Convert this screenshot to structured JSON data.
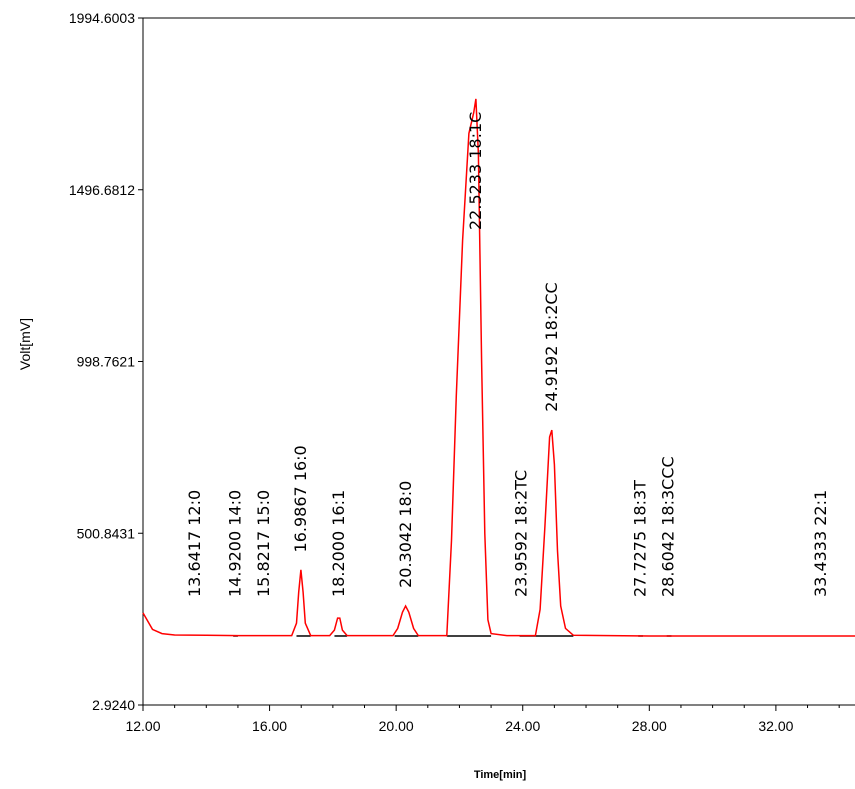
{
  "chart_data": {
    "type": "line",
    "xlabel": "Time[min]",
    "ylabel": "Volt[mV]",
    "xlim": [
      12.0,
      34.5
    ],
    "ylim": [
      2.924,
      1994.6003
    ],
    "x_ticks": [
      "12.00",
      "16.00",
      "20.00",
      "24.00",
      "28.00",
      "32.00"
    ],
    "y_ticks": [
      "1994.6003",
      "1496.6812",
      "998.7621",
      "500.8431",
      "2.9240"
    ],
    "grid": false,
    "line_color": "#ff0000",
    "baseline": 203,
    "series": [
      {
        "values": [
          [
            12.0,
            270
          ],
          [
            12.3,
            222
          ],
          [
            12.6,
            210
          ],
          [
            13.0,
            206
          ],
          [
            14.0,
            205
          ],
          [
            15.0,
            204
          ],
          [
            16.0,
            204
          ],
          [
            16.7,
            204
          ],
          [
            16.85,
            240
          ],
          [
            16.92,
            330
          ],
          [
            16.99,
            395
          ],
          [
            17.06,
            330
          ],
          [
            17.13,
            240
          ],
          [
            17.3,
            204
          ],
          [
            17.9,
            204
          ],
          [
            18.05,
            220
          ],
          [
            18.15,
            255
          ],
          [
            18.22,
            255
          ],
          [
            18.3,
            220
          ],
          [
            18.45,
            204
          ],
          [
            19.9,
            204
          ],
          [
            20.05,
            225
          ],
          [
            20.2,
            272
          ],
          [
            20.3,
            290
          ],
          [
            20.4,
            272
          ],
          [
            20.55,
            225
          ],
          [
            20.7,
            204
          ],
          [
            21.6,
            204
          ],
          [
            21.75,
            480
          ],
          [
            21.9,
            900
          ],
          [
            22.1,
            1350
          ],
          [
            22.3,
            1660
          ],
          [
            22.45,
            1720
          ],
          [
            22.52,
            1760
          ],
          [
            22.6,
            1600
          ],
          [
            22.7,
            1000
          ],
          [
            22.8,
            500
          ],
          [
            22.9,
            250
          ],
          [
            23.0,
            210
          ],
          [
            23.5,
            204
          ],
          [
            24.4,
            204
          ],
          [
            24.55,
            280
          ],
          [
            24.7,
            520
          ],
          [
            24.85,
            780
          ],
          [
            24.92,
            800
          ],
          [
            25.0,
            700
          ],
          [
            25.1,
            450
          ],
          [
            25.2,
            290
          ],
          [
            25.35,
            225
          ],
          [
            25.6,
            205
          ],
          [
            28.0,
            203
          ],
          [
            34.5,
            203
          ]
        ]
      }
    ],
    "peaks": [
      {
        "label": "13.6417 12:0",
        "rt": 13.6417
      },
      {
        "label": "14.9200 14:0",
        "rt": 14.92
      },
      {
        "label": "15.8217 15:0",
        "rt": 15.8217
      },
      {
        "label": "16.9867 16:0",
        "rt": 16.9867
      },
      {
        "label": "18.2000 16:1",
        "rt": 18.2
      },
      {
        "label": "20.3042 18:0",
        "rt": 20.3042
      },
      {
        "label": "22.5233 18:1C",
        "rt": 22.5233
      },
      {
        "label": "23.9592 18:2TC",
        "rt": 23.9592
      },
      {
        "label": "24.9192 18:2CC",
        "rt": 24.9192
      },
      {
        "label": "27.7275 18:3T",
        "rt": 27.7275
      },
      {
        "label": "28.6042 18:3CCC",
        "rt": 28.6042
      },
      {
        "label": "33.4333 22:1",
        "rt": 33.4333
      }
    ]
  }
}
